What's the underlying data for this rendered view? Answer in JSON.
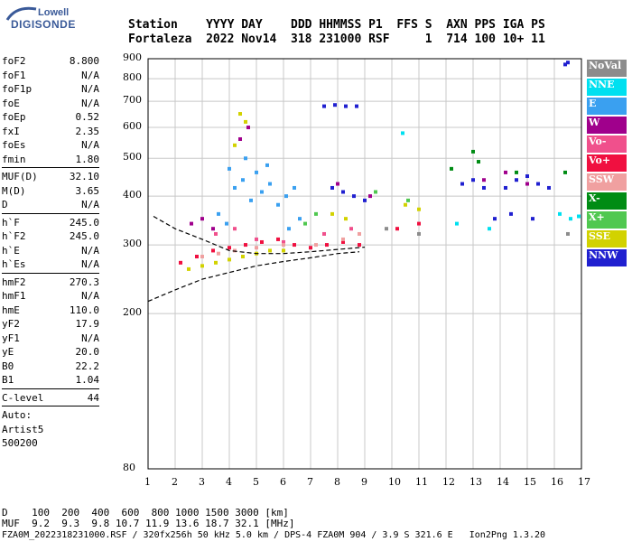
{
  "logo": {
    "line1": "Lowell",
    "line2": "DIGISONDE"
  },
  "header": {
    "names": "Station    YYYY DAY    DDD HHMMSS P1  FFS S  AXN PPS IGA PS",
    "values": "Fortaleza  2022 Nov14  318 231000 RSF     1  714 100 10+ 11"
  },
  "params_a": [
    {
      "name": "foF2",
      "value": "8.800"
    },
    {
      "name": "foF1",
      "value": "N/A"
    },
    {
      "name": "foF1p",
      "value": "N/A"
    },
    {
      "name": "foE",
      "value": "N/A"
    },
    {
      "name": "foEp",
      "value": "0.52"
    },
    {
      "name": "fxI",
      "value": "2.35"
    },
    {
      "name": "foEs",
      "value": "N/A"
    },
    {
      "name": "fmin",
      "value": "1.80"
    }
  ],
  "params_b": [
    {
      "name": "MUF(D)",
      "value": "32.10"
    },
    {
      "name": "M(D)",
      "value": "3.65"
    },
    {
      "name": "D",
      "value": "N/A"
    }
  ],
  "params_c": [
    {
      "name": "h`F",
      "value": "245.0"
    },
    {
      "name": "h`F2",
      "value": "245.0"
    },
    {
      "name": "h`E",
      "value": "N/A"
    },
    {
      "name": "h`Es",
      "value": "N/A"
    }
  ],
  "params_d": [
    {
      "name": "hmF2",
      "value": "270.3"
    },
    {
      "name": "hmF1",
      "value": "N/A"
    },
    {
      "name": "hmE",
      "value": "110.0"
    },
    {
      "name": "yF2",
      "value": "17.9"
    },
    {
      "name": "yF1",
      "value": "N/A"
    },
    {
      "name": "yE",
      "value": "20.0"
    },
    {
      "name": "B0",
      "value": "22.2"
    },
    {
      "name": "B1",
      "value": "1.04"
    }
  ],
  "params_e": [
    {
      "name": "C-level",
      "value": "44"
    }
  ],
  "auto": {
    "line1": "Auto:",
    "line2": "Artist5",
    "line3": "500200"
  },
  "legend": [
    {
      "label": "NoVal",
      "color": "#8c8c8c"
    },
    {
      "label": "NNE",
      "color": "#00e0f0"
    },
    {
      "label": "E",
      "color": "#3aa0f0"
    },
    {
      "label": "W",
      "color": "#a0008c"
    },
    {
      "label": "Vo-",
      "color": "#f0508c"
    },
    {
      "label": "Vo+",
      "color": "#f01040"
    },
    {
      "label": "SSW",
      "color": "#f0a0a0"
    },
    {
      "label": "X-",
      "color": "#008c14"
    },
    {
      "label": "X+",
      "color": "#50c850"
    },
    {
      "label": "SSE",
      "color": "#d2d200"
    },
    {
      "label": "NNW",
      "color": "#2020d0"
    }
  ],
  "chart_data": {
    "type": "scatter",
    "title": "",
    "xlabel": "",
    "ylabel": "",
    "xlim": [
      1,
      17
    ],
    "ylim": [
      80,
      900
    ],
    "y_scale": "log",
    "grid": true,
    "x_ticks": [
      "1",
      "2",
      "3",
      "4",
      "5",
      "6",
      "7",
      "8",
      "9",
      "10",
      "11",
      "12",
      "13",
      "14",
      "15",
      "16",
      "17"
    ],
    "y_ticks": [
      "80",
      "200",
      "300",
      "400",
      "500",
      "600",
      "700",
      "800",
      "900"
    ],
    "y_tick_values": [
      80,
      200,
      300,
      400,
      500,
      600,
      700,
      800,
      900
    ],
    "series": [
      {
        "name": "E",
        "color": "#3aa0f0",
        "points": [
          [
            4.2,
            420
          ],
          [
            4.5,
            440
          ],
          [
            5.2,
            410
          ],
          [
            5.5,
            430
          ],
          [
            6.1,
            400
          ],
          [
            6.4,
            420
          ],
          [
            4.0,
            470
          ],
          [
            5.0,
            460
          ],
          [
            4.8,
            390
          ],
          [
            5.8,
            380
          ],
          [
            3.6,
            360
          ],
          [
            6.6,
            350
          ],
          [
            4.6,
            500
          ],
          [
            5.4,
            480
          ],
          [
            3.9,
            340
          ],
          [
            6.2,
            330
          ]
        ]
      },
      {
        "name": "W",
        "color": "#a0008c",
        "points": [
          [
            2.6,
            340
          ],
          [
            3.0,
            350
          ],
          [
            3.4,
            330
          ],
          [
            4.4,
            560
          ],
          [
            4.7,
            600
          ],
          [
            13.4,
            440
          ],
          [
            14.2,
            460
          ],
          [
            15.0,
            430
          ],
          [
            8.0,
            430
          ],
          [
            9.2,
            400
          ]
        ]
      },
      {
        "name": "Vo-",
        "color": "#f0508c",
        "points": [
          [
            3.5,
            320
          ],
          [
            4.2,
            330
          ],
          [
            5.0,
            310
          ],
          [
            6.0,
            305
          ],
          [
            7.5,
            320
          ],
          [
            8.5,
            330
          ]
        ]
      },
      {
        "name": "Vo+",
        "color": "#f01040",
        "points": [
          [
            2.2,
            270
          ],
          [
            2.8,
            280
          ],
          [
            3.4,
            290
          ],
          [
            4.0,
            295
          ],
          [
            4.6,
            300
          ],
          [
            5.2,
            305
          ],
          [
            5.8,
            310
          ],
          [
            6.4,
            300
          ],
          [
            7.0,
            295
          ],
          [
            7.6,
            300
          ],
          [
            8.2,
            305
          ],
          [
            8.8,
            300
          ],
          [
            10.2,
            330
          ],
          [
            11.0,
            340
          ]
        ]
      },
      {
        "name": "SSW",
        "color": "#f0a0a0",
        "points": [
          [
            3.0,
            280
          ],
          [
            3.6,
            285
          ],
          [
            4.2,
            290
          ],
          [
            5.0,
            295
          ],
          [
            6.0,
            300
          ],
          [
            7.2,
            300
          ],
          [
            8.2,
            310
          ],
          [
            8.8,
            320
          ]
        ]
      },
      {
        "name": "X-",
        "color": "#008c14",
        "points": [
          [
            12.2,
            470
          ],
          [
            13.2,
            490
          ],
          [
            14.6,
            460
          ],
          [
            16.4,
            460
          ],
          [
            13.0,
            520
          ]
        ]
      },
      {
        "name": "X+",
        "color": "#50c850",
        "points": [
          [
            6.8,
            340
          ],
          [
            7.2,
            360
          ],
          [
            9.4,
            410
          ],
          [
            10.6,
            390
          ]
        ]
      },
      {
        "name": "SSE",
        "color": "#d2d200",
        "points": [
          [
            2.5,
            260
          ],
          [
            3.0,
            265
          ],
          [
            3.5,
            270
          ],
          [
            4.0,
            275
          ],
          [
            4.5,
            280
          ],
          [
            5.0,
            285
          ],
          [
            5.5,
            290
          ],
          [
            6.0,
            290
          ],
          [
            4.4,
            650
          ],
          [
            4.6,
            620
          ],
          [
            4.2,
            540
          ],
          [
            7.8,
            360
          ],
          [
            8.3,
            350
          ],
          [
            10.5,
            380
          ],
          [
            11.0,
            370
          ]
        ]
      },
      {
        "name": "NNW",
        "color": "#2020d0",
        "points": [
          [
            7.5,
            680
          ],
          [
            7.9,
            685
          ],
          [
            8.3,
            680
          ],
          [
            8.7,
            680
          ],
          [
            7.8,
            420
          ],
          [
            8.2,
            410
          ],
          [
            8.6,
            400
          ],
          [
            9.0,
            390
          ],
          [
            12.6,
            430
          ],
          [
            13.0,
            440
          ],
          [
            13.4,
            420
          ],
          [
            13.8,
            350
          ],
          [
            14.2,
            420
          ],
          [
            14.6,
            440
          ],
          [
            15.0,
            450
          ],
          [
            15.4,
            430
          ],
          [
            15.8,
            420
          ],
          [
            14.4,
            360
          ],
          [
            15.2,
            350
          ],
          [
            16.4,
            870
          ],
          [
            16.5,
            880
          ]
        ]
      },
      {
        "name": "NNE",
        "color": "#00e0f0",
        "points": [
          [
            10.4,
            580
          ],
          [
            16.2,
            360
          ],
          [
            16.6,
            350
          ],
          [
            16.9,
            355
          ],
          [
            12.4,
            340
          ],
          [
            13.6,
            330
          ]
        ]
      },
      {
        "name": "NoVal",
        "color": "#8c8c8c",
        "points": [
          [
            11.0,
            320
          ],
          [
            9.8,
            330
          ],
          [
            16.5,
            320
          ]
        ]
      }
    ],
    "profile_lines": [
      {
        "points": [
          [
            1.0,
            215
          ],
          [
            2.0,
            230
          ],
          [
            3.0,
            245
          ],
          [
            4.0,
            255
          ],
          [
            5.0,
            265
          ],
          [
            6.0,
            272
          ],
          [
            7.0,
            278
          ],
          [
            8.0,
            285
          ],
          [
            8.8,
            288
          ]
        ]
      },
      {
        "points": [
          [
            1.2,
            355
          ],
          [
            2.0,
            330
          ],
          [
            3.0,
            310
          ],
          [
            4.0,
            290
          ],
          [
            5.0,
            285
          ],
          [
            6.0,
            285
          ],
          [
            7.0,
            288
          ],
          [
            8.0,
            292
          ],
          [
            9.0,
            296
          ]
        ]
      }
    ]
  },
  "bottom": {
    "d_line": "D    100  200  400  600  800 1000 1500 3000 [km]",
    "muf_line": "MUF  9.2  9.3  9.8 10.7 11.9 13.6 18.7 32.1 [MHz]",
    "footer": "FZA0M_2022318231000.RSF / 320fx256h 50 kHz 5.0 km / DPS-4 FZA0M 904 / 3.9 S 321.6 E   Ion2Png 1.3.20"
  }
}
